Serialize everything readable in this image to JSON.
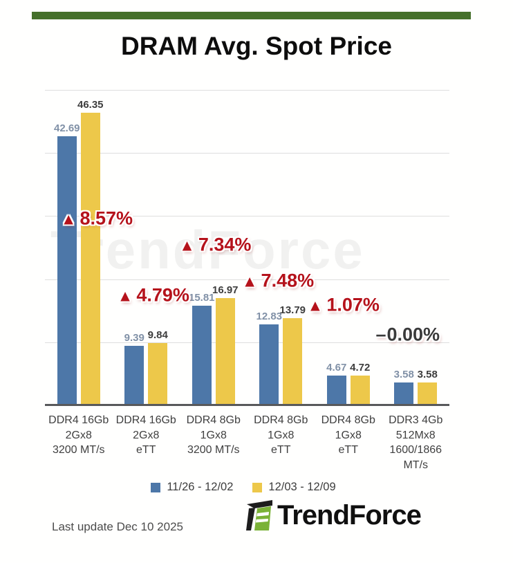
{
  "page": {
    "title": "DRAM Avg. Spot Price",
    "accent_green": "#45702b",
    "watermark": "TrendForce",
    "footer": {
      "last_update": "Last update Dec 10 2025",
      "brand": "TrendForce"
    }
  },
  "chart_data": {
    "type": "bar",
    "title": "DRAM Avg. Spot Price",
    "ylim": [
      0,
      50
    ],
    "grid": true,
    "grid_interval": 10,
    "legend_position": "bottom",
    "axis_color": "#58595b",
    "gridline_color": "#dedede",
    "categories": [
      "DDR4 16Gb\n2Gx8\n3200 MT/s",
      "DDR4 16Gb\n2Gx8\neTT",
      "DDR4 8Gb\n1Gx8\n3200 MT/s",
      "DDR4 8Gb\n1Gx8\neTT",
      "DDR4 8Gb\n1Gx8\neTT",
      "DDR3 4Gb\n512Mx8\n1600/1866\nMT/s"
    ],
    "series": [
      {
        "name": "11/26 - 12/02",
        "color": "#4d77a8",
        "label_color": "#8191a7",
        "values": [
          42.69,
          9.39,
          15.81,
          12.83,
          4.67,
          3.58
        ]
      },
      {
        "name": "12/03 - 12/09",
        "color": "#edc84a",
        "label_color": "#3d3d3d",
        "values": [
          46.35,
          9.84,
          16.97,
          13.79,
          4.72,
          3.58
        ]
      }
    ],
    "change_labels": [
      {
        "text": "8.57%",
        "dir": "up",
        "color": "#b5121b",
        "pos": {
          "x": 12.8,
          "y": 40.8
        }
      },
      {
        "text": "4.79%",
        "dir": "up",
        "color": "#b5121b",
        "pos": {
          "x": 26.8,
          "y": 65.1
        }
      },
      {
        "text": "7.34%",
        "dir": "up",
        "color": "#b5121b",
        "pos": {
          "x": 42.1,
          "y": 49.1
        }
      },
      {
        "text": "7.48%",
        "dir": "up",
        "color": "#b5121b",
        "pos": {
          "x": 57.6,
          "y": 60.5
        }
      },
      {
        "text": "1.07%",
        "dir": "up",
        "color": "#b5121b",
        "pos": {
          "x": 73.8,
          "y": 68.2
        }
      },
      {
        "text": "0.00%",
        "dir": "flat",
        "prefix": "–",
        "color": "#3a3a3a",
        "pos": {
          "x": 89.7,
          "y": 77.6
        }
      }
    ]
  }
}
